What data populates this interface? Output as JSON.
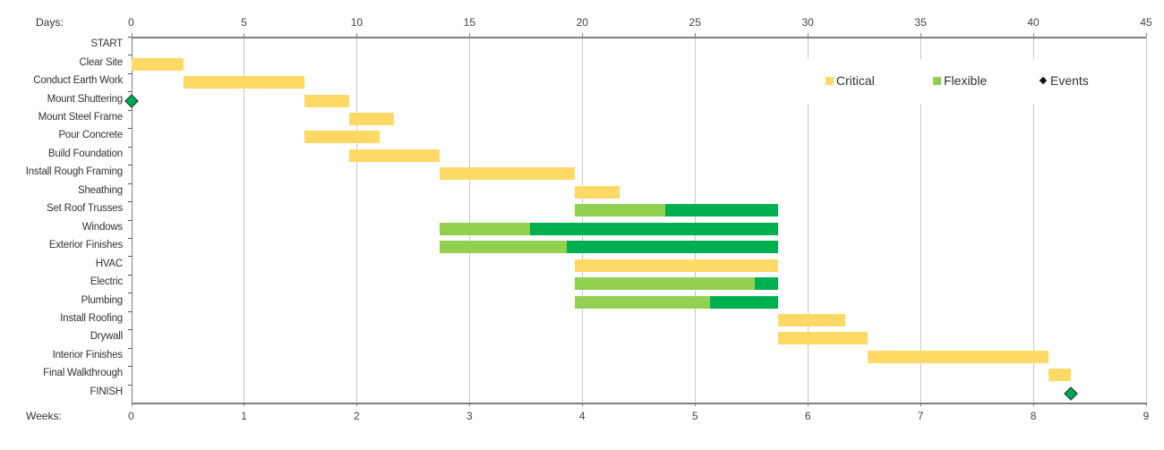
{
  "chart_data": {
    "type": "gantt",
    "title": "",
    "top_axis": {
      "label": "Days:",
      "min": 0,
      "max": 45,
      "ticks": [
        0,
        5,
        10,
        15,
        20,
        25,
        30,
        35,
        40,
        45
      ]
    },
    "bottom_axis": {
      "label": "Weeks:",
      "min": 0,
      "max": 9,
      "ticks": [
        0,
        1,
        2,
        3,
        4,
        5,
        6,
        7,
        8,
        9
      ]
    },
    "grid": true,
    "legend": {
      "position": "top-right",
      "entries": [
        {
          "label": "Critical",
          "color": "#FFD966",
          "shape": "square"
        },
        {
          "label": "Flexible",
          "color": "#92D050",
          "shape": "square"
        },
        {
          "label": "Events",
          "color": "#000000",
          "shape": "diamond"
        }
      ]
    },
    "colors": {
      "critical": "#FFD966",
      "flexible": "#92D050",
      "slack": "#00B050",
      "event": "#00A651"
    },
    "tasks": [
      {
        "name": "START",
        "segments": []
      },
      {
        "name": "Clear Site",
        "segments": [
          {
            "type": "critical",
            "start": 0,
            "end": 2.33
          }
        ]
      },
      {
        "name": "Conduct Earth Work",
        "segments": [
          {
            "type": "critical",
            "start": 2.33,
            "end": 7.67
          }
        ]
      },
      {
        "name": "Mount Shuttering",
        "segments": [
          {
            "type": "critical",
            "start": 7.67,
            "end": 9.67
          }
        ],
        "event": 0
      },
      {
        "name": "Mount Steel Frame",
        "segments": [
          {
            "type": "critical",
            "start": 9.67,
            "end": 11.67
          }
        ]
      },
      {
        "name": "Pour Concrete",
        "segments": [
          {
            "type": "critical",
            "start": 7.67,
            "end": 11.0
          }
        ]
      },
      {
        "name": "Build Foundation",
        "segments": [
          {
            "type": "critical",
            "start": 9.67,
            "end": 13.67
          }
        ]
      },
      {
        "name": "Install Rough Framing",
        "segments": [
          {
            "type": "critical",
            "start": 13.67,
            "end": 19.67
          }
        ]
      },
      {
        "name": "Sheathing",
        "segments": [
          {
            "type": "critical",
            "start": 19.67,
            "end": 21.67
          }
        ]
      },
      {
        "name": "Set Roof Trusses",
        "segments": [
          {
            "type": "flexible",
            "start": 19.67,
            "end": 23.67
          },
          {
            "type": "slack",
            "start": 23.67,
            "end": 28.67
          }
        ]
      },
      {
        "name": "Windows",
        "segments": [
          {
            "type": "flexible",
            "start": 13.67,
            "end": 17.67
          },
          {
            "type": "slack",
            "start": 17.67,
            "end": 28.67
          }
        ]
      },
      {
        "name": "Exterior Finishes",
        "segments": [
          {
            "type": "flexible",
            "start": 13.67,
            "end": 19.33
          },
          {
            "type": "slack",
            "start": 19.33,
            "end": 28.67
          }
        ]
      },
      {
        "name": "HVAC",
        "segments": [
          {
            "type": "critical",
            "start": 19.67,
            "end": 28.67
          }
        ]
      },
      {
        "name": "Electric",
        "segments": [
          {
            "type": "flexible",
            "start": 19.67,
            "end": 27.67
          },
          {
            "type": "slack",
            "start": 27.67,
            "end": 28.67
          }
        ]
      },
      {
        "name": "Plumbing",
        "segments": [
          {
            "type": "flexible",
            "start": 19.67,
            "end": 25.67
          },
          {
            "type": "slack",
            "start": 25.67,
            "end": 28.67
          }
        ]
      },
      {
        "name": "Install Roofing",
        "segments": [
          {
            "type": "critical",
            "start": 28.67,
            "end": 31.67
          }
        ]
      },
      {
        "name": "Drywall",
        "segments": [
          {
            "type": "critical",
            "start": 28.67,
            "end": 32.67
          }
        ]
      },
      {
        "name": "Interior Finishes",
        "segments": [
          {
            "type": "critical",
            "start": 32.67,
            "end": 40.67
          }
        ]
      },
      {
        "name": "Final Walkthrough",
        "segments": [
          {
            "type": "critical",
            "start": 40.67,
            "end": 41.67
          }
        ]
      },
      {
        "name": "FINISH",
        "segments": [],
        "event": 41.67
      }
    ]
  }
}
